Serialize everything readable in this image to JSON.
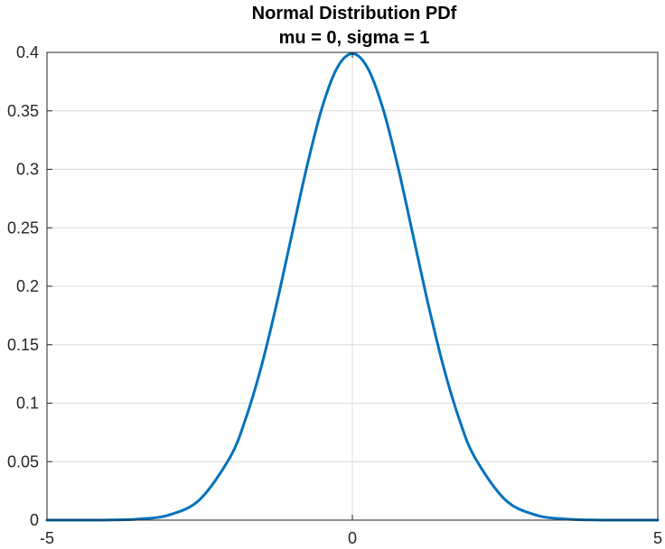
{
  "chart_data": {
    "type": "line",
    "title": "Normal Distribution PDf",
    "subtitle": "mu = 0, sigma = 1",
    "xlabel": "",
    "ylabel": "",
    "xlim": [
      -5,
      5
    ],
    "ylim": [
      0,
      0.4
    ],
    "grid": true,
    "x_ticks": [
      -5,
      0,
      5
    ],
    "x_tick_labels": [
      "-5",
      "0",
      "5"
    ],
    "y_ticks": [
      0,
      0.05,
      0.1,
      0.15,
      0.2,
      0.25,
      0.3,
      0.35,
      0.4
    ],
    "y_tick_labels": [
      "0",
      "0.05",
      "0.1",
      "0.15",
      "0.2",
      "0.25",
      "0.3",
      "0.35",
      "0.4"
    ],
    "series": [
      {
        "color": "#0072BD",
        "x": [
          -5,
          -4.5,
          -4,
          -3.5,
          -3,
          -2.5,
          -2,
          -1.75,
          -1.5,
          -1.25,
          -1,
          -0.75,
          -0.5,
          -0.25,
          0,
          0.25,
          0.5,
          0.75,
          1,
          1.25,
          1.5,
          1.75,
          2,
          2.5,
          3,
          3.5,
          4,
          4.5,
          5
        ],
        "y": [
          1.5e-06,
          1.6e-05,
          0.000134,
          0.000873,
          0.004432,
          0.017528,
          0.053991,
          0.086277,
          0.129518,
          0.182649,
          0.241971,
          0.301137,
          0.352065,
          0.386668,
          0.398942,
          0.386668,
          0.352065,
          0.301137,
          0.241971,
          0.182649,
          0.129518,
          0.086277,
          0.053991,
          0.017528,
          0.004432,
          0.000873,
          0.000134,
          1.6e-05,
          1.5e-06
        ]
      }
    ]
  }
}
